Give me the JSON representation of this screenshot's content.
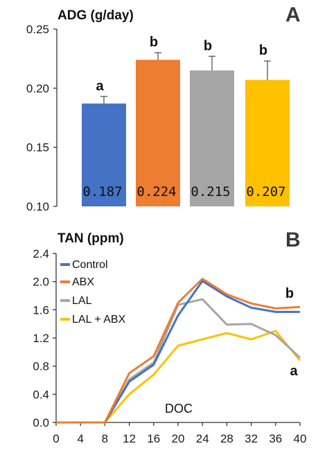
{
  "chart_data": [
    {
      "type": "bar",
      "panel_label": "A",
      "title": "ADG (g/day)",
      "ylim": [
        0.1,
        0.25
      ],
      "yticks": [
        "0.10",
        "0.15",
        "0.20",
        "0.25"
      ],
      "categories": [
        "Control",
        "ABX",
        "LAL",
        "LAL + ABX"
      ],
      "values": [
        0.187,
        0.224,
        0.215,
        0.207
      ],
      "value_labels": [
        "0.187",
        "0.224",
        "0.215",
        "0.207"
      ],
      "errors": [
        0.006,
        0.006,
        0.012,
        0.016
      ],
      "significance": [
        "a",
        "b",
        "b",
        "b"
      ],
      "colors": [
        "#4472C4",
        "#ED7D31",
        "#A5A5A5",
        "#FFC000"
      ]
    },
    {
      "type": "line",
      "panel_label": "B",
      "title": "TAN (ppm)",
      "xlabel": "DOC",
      "x": [
        0,
        4,
        8,
        12,
        16,
        20,
        24,
        28,
        32,
        36,
        40
      ],
      "xticks": [
        "0",
        "4",
        "8",
        "12",
        "16",
        "20",
        "24",
        "28",
        "32",
        "36",
        "40"
      ],
      "ylim": [
        0.0,
        2.4
      ],
      "yticks": [
        "0.0",
        "0.4",
        "0.8",
        "1.2",
        "1.6",
        "2.0",
        "2.4"
      ],
      "legend_position": "upper-left",
      "series": [
        {
          "name": "Control",
          "color": "#4472C4",
          "values": [
            0,
            0,
            0,
            0.58,
            0.82,
            1.52,
            2.01,
            1.79,
            1.63,
            1.57,
            1.57
          ]
        },
        {
          "name": "ABX",
          "color": "#ED7D31",
          "values": [
            0,
            0,
            0,
            0.7,
            0.94,
            1.7,
            2.04,
            1.82,
            1.69,
            1.62,
            1.64
          ]
        },
        {
          "name": "LAL",
          "color": "#A5A5A5",
          "values": [
            0,
            0,
            0,
            0.61,
            0.85,
            1.67,
            1.75,
            1.39,
            1.4,
            1.24,
            0.92
          ]
        },
        {
          "name": "LAL + ABX",
          "color": "#FFC000",
          "values": [
            0,
            0,
            0,
            0.4,
            0.68,
            1.09,
            1.18,
            1.27,
            1.18,
            1.3,
            0.88
          ]
        }
      ],
      "annotations": [
        {
          "text": "b",
          "attached_series": "ABX"
        },
        {
          "text": "a",
          "attached_series": "LAL + ABX"
        }
      ]
    }
  ]
}
